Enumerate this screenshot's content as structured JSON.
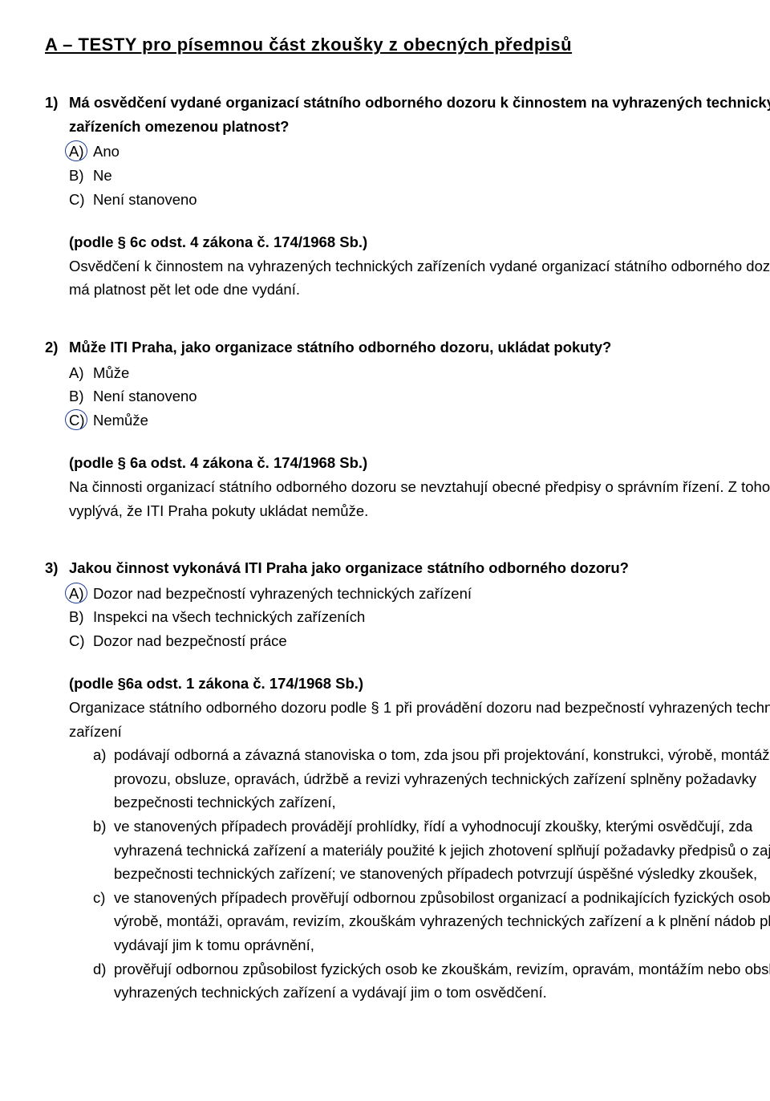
{
  "title": "A – TESTY pro písemnou část zkoušky z obecných předpisů",
  "circle_color": "#1a3a9c",
  "questions": [
    {
      "num": "1)",
      "prompt": "Má osvědčení vydané organizací státního odborného dozoru k činnostem na vyhrazených technických zařízeních omezenou platnost?",
      "options": [
        {
          "letter": "A)",
          "text": "Ano",
          "circled": true
        },
        {
          "letter": "B)",
          "text": "Ne",
          "circled": false
        },
        {
          "letter": "C)",
          "text": "Není stanoveno",
          "circled": false
        }
      ],
      "citation": "(podle § 6c odst. 4 zákona č. 174/1968 Sb.)",
      "explanation": "Osvědčení k činnostem na vyhrazených technických zařízeních vydané organizací státního odborného dozoru má platnost pět let ode dne vydání."
    },
    {
      "num": "2)",
      "prompt": "Může ITI Praha, jako organizace státního odborného dozoru, ukládat pokuty?",
      "options": [
        {
          "letter": "A)",
          "text": "Může",
          "circled": false
        },
        {
          "letter": "B)",
          "text": "Není stanoveno",
          "circled": false
        },
        {
          "letter": "C)",
          "text": "Nemůže",
          "circled": true
        }
      ],
      "citation": "(podle § 6a odst. 4 zákona č. 174/1968 Sb.)",
      "explanation": "Na činnosti organizací státního odborného dozoru se nevztahují obecné předpisy o správním řízení. Z toho vyplývá, že ITI Praha pokuty ukládat nemůže."
    },
    {
      "num": "3)",
      "prompt": "Jakou činnost vykonává ITI Praha jako organizace státního odborného dozoru?",
      "options": [
        {
          "letter": "A)",
          "text": "Dozor nad bezpečností vyhrazených technických zařízení",
          "circled": true
        },
        {
          "letter": "B)",
          "text": "Inspekci na všech technických zařízeních",
          "circled": false
        },
        {
          "letter": "C)",
          "text": "Dozor nad bezpečností práce",
          "circled": false
        }
      ],
      "citation": "(podle §6a odst. 1 zákona č. 174/1968 Sb.)",
      "explanation": "Organizace státního odborného dozoru podle § 1 při provádění dozoru nad bezpečností vyhrazených technických zařízení",
      "subitems": [
        {
          "letter": "a)",
          "text": "podávají odborná a závazná stanoviska o tom, zda jsou při projektování, konstrukci, výrobě, montáži, provozu, obsluze, opravách, údržbě a revizi vyhrazených technických zařízení splněny požadavky bezpečnosti technických zařízení,"
        },
        {
          "letter": "b)",
          "text": "ve stanovených případech provádějí prohlídky, řídí a vyhodnocují zkoušky, kterými osvědčují, zda vyhrazená technická zařízení a materiály použité k jejich zhotovení splňují požadavky předpisů o zajištění bezpečnosti technických zařízení; ve stanovených případech potvrzují úspěšné výsledky zkoušek,"
        },
        {
          "letter": "c)",
          "text": "ve stanovených případech prověřují odbornou způsobilost organizací a podnikajících fyzických osob k výrobě, montáži, opravám, revizím, zkouškám vyhrazených technických zařízení a k plnění nádob plyny a vydávají jim k tomu oprávnění,"
        },
        {
          "letter": "d)",
          "text": "prověřují odbornou způsobilost fyzických osob ke zkouškám, revizím, opravám, montážím nebo obsluze vyhrazených technických zařízení a vydávají jim o tom osvědčení."
        }
      ]
    }
  ]
}
